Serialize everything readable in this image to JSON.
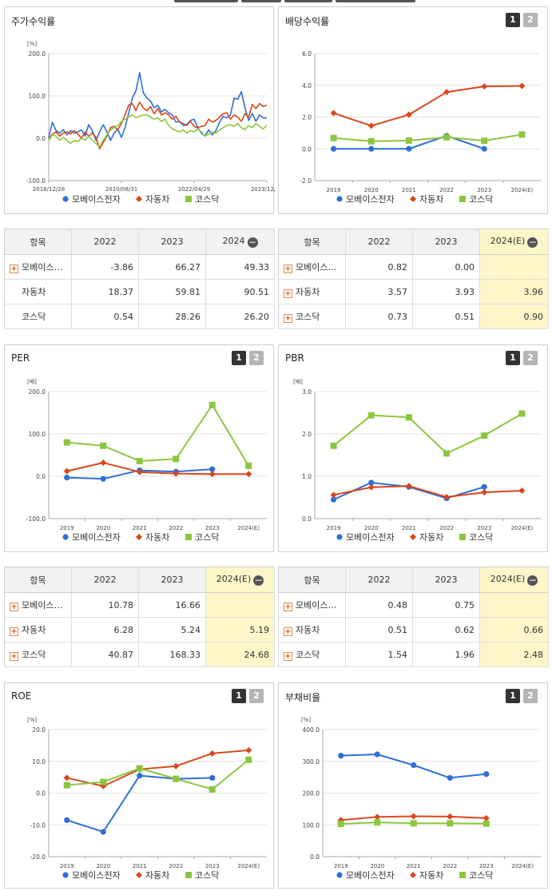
{
  "colors": {
    "mobase": "#2e6fd6",
    "auto": "#d9461b",
    "kosdaq": "#8cc63f"
  },
  "legend": {
    "mobase": "모베이스전자",
    "auto": "자동차",
    "kosdaq": "코스닥"
  },
  "tab_labels": [
    "1",
    "2"
  ],
  "panels": {
    "stock_return": {
      "title": "주가수익률",
      "chart_data": {
        "type": "line",
        "title": "주가수익률",
        "ylabel": "[%]",
        "ylim": [
          -100,
          200
        ],
        "yticks": [
          "200.0",
          "100.0",
          "0.0",
          "-100.0"
        ],
        "xtick_labels": [
          "2018/12/28",
          "2020/08/31",
          "2022/04/29",
          "2023/12/28"
        ],
        "x_range": [
          0,
          60
        ],
        "xtick_positions": [
          0,
          20,
          40,
          60
        ],
        "series": [
          {
            "name": "모베이스전자",
            "values": [
              2,
              38,
              18,
              12,
              20,
              8,
              18,
              12,
              15,
              20,
              5,
              32,
              18,
              -5,
              15,
              32,
              15,
              -5,
              12,
              22,
              2,
              25,
              60,
              95,
              112,
              155,
              108,
              95,
              88,
              72,
              78,
              62,
              68,
              60,
              55,
              38,
              40,
              30,
              32,
              42,
              45,
              25,
              12,
              5,
              20,
              8,
              18,
              38,
              52,
              48,
              55,
              95,
              92,
              110,
              72,
              42,
              58,
              40,
              55,
              48,
              48
            ]
          },
          {
            "name": "자동차",
            "values": [
              -2,
              10,
              15,
              5,
              12,
              15,
              10,
              18,
              10,
              0,
              15,
              5,
              12,
              2,
              -25,
              -10,
              5,
              25,
              28,
              20,
              35,
              55,
              78,
              82,
              65,
              85,
              72,
              65,
              75,
              58,
              70,
              55,
              60,
              55,
              45,
              52,
              38,
              35,
              30,
              40,
              28,
              25,
              28,
              30,
              45,
              38,
              42,
              50,
              58,
              60,
              45,
              55,
              50,
              40,
              58,
              50,
              80,
              70,
              82,
              75,
              78
            ]
          },
          {
            "name": "코스닥",
            "values": [
              -5,
              8,
              5,
              -5,
              2,
              -5,
              -12,
              -5,
              -8,
              0,
              -5,
              5,
              -5,
              -12,
              -20,
              -5,
              8,
              20,
              25,
              30,
              40,
              45,
              50,
              55,
              48,
              52,
              55,
              55,
              50,
              45,
              48,
              40,
              45,
              30,
              22,
              18,
              15,
              20,
              12,
              18,
              15,
              22,
              15,
              5,
              10,
              15,
              12,
              20,
              25,
              30,
              32,
              28,
              35,
              25,
              20,
              30,
              25,
              35,
              28,
              22,
              30
            ]
          }
        ]
      }
    },
    "dividend": {
      "title": "배당수익률",
      "chart_data": {
        "type": "line",
        "title": "배당수익률",
        "ylim": [
          -2,
          6
        ],
        "yticks": [
          "6.0",
          "4.0",
          "2.0",
          "0.0",
          "-2.0"
        ],
        "categories": [
          "2019",
          "2020",
          "2021",
          "2022",
          "2023",
          "2024(E)"
        ],
        "series": [
          {
            "name": "모베이스전자",
            "values": [
              0.0,
              0.0,
              0.0,
              0.82,
              0.0,
              null
            ]
          },
          {
            "name": "자동차",
            "values": [
              2.25,
              1.45,
              2.15,
              3.57,
              3.93,
              3.96
            ]
          },
          {
            "name": "코스닥",
            "values": [
              0.68,
              0.48,
              0.52,
              0.73,
              0.51,
              0.9
            ]
          }
        ]
      }
    },
    "per": {
      "title": "PER",
      "chart_data": {
        "type": "line",
        "title": "PER",
        "ylabel": "[배]",
        "ylim": [
          -100,
          200
        ],
        "yticks": [
          "200.0",
          "100.0",
          "0.0",
          "-100.0"
        ],
        "categories": [
          "2019",
          "2020",
          "2021",
          "2022",
          "2023",
          "2024(E)"
        ],
        "series": [
          {
            "name": "모베이스전자",
            "values": [
              -3,
              -6,
              14,
              10.78,
              16.66,
              null
            ]
          },
          {
            "name": "자동차",
            "values": [
              12,
              32,
              10,
              6.28,
              5.24,
              5.19
            ]
          },
          {
            "name": "코스닥",
            "values": [
              80,
              72,
              36,
              40.87,
              168.33,
              24.68
            ]
          }
        ]
      }
    },
    "pbr": {
      "title": "PBR",
      "chart_data": {
        "type": "line",
        "title": "PBR",
        "ylabel": "[배]",
        "ylim": [
          0,
          3
        ],
        "yticks": [
          "3.0",
          "2.0",
          "1.0",
          "0.0"
        ],
        "categories": [
          "2019",
          "2020",
          "2021",
          "2022",
          "2023",
          "2024(E)"
        ],
        "series": [
          {
            "name": "모베이스전자",
            "values": [
              0.45,
              0.85,
              0.75,
              0.48,
              0.75,
              null
            ]
          },
          {
            "name": "자동차",
            "values": [
              0.56,
              0.74,
              0.77,
              0.51,
              0.62,
              0.66
            ]
          },
          {
            "name": "코스닥",
            "values": [
              1.72,
              2.44,
              2.39,
              1.54,
              1.96,
              2.48
            ]
          }
        ]
      }
    },
    "roe": {
      "title": "ROE",
      "chart_data": {
        "type": "line",
        "title": "ROE",
        "ylabel": "[%]",
        "ylim": [
          -20,
          20
        ],
        "yticks": [
          "20.0",
          "10.0",
          "0.0",
          "-10.0",
          "-20.0"
        ],
        "categories": [
          "2019",
          "2020",
          "2021",
          "2022",
          "2023",
          "2024(E)"
        ],
        "series": [
          {
            "name": "모베이스전자",
            "values": [
              -8.5,
              -12.2,
              5.5,
              4.5,
              4.8,
              null
            ]
          },
          {
            "name": "자동차",
            "values": [
              4.8,
              2.2,
              7.5,
              8.5,
              12.5,
              13.5
            ]
          },
          {
            "name": "코스닥",
            "values": [
              2.5,
              3.5,
              7.8,
              4.5,
              1.2,
              10.5
            ]
          }
        ]
      }
    },
    "debt": {
      "title": "부채비율",
      "chart_data": {
        "type": "line",
        "title": "부채비율",
        "ylabel": "[%]",
        "ylim": [
          0,
          400
        ],
        "yticks": [
          "400.0",
          "300.0",
          "200.0",
          "100.0",
          "0.0"
        ],
        "categories": [
          "2019",
          "2020",
          "2021",
          "2022",
          "2023",
          "2024(E)"
        ],
        "series": [
          {
            "name": "모베이스전자",
            "values": [
              318,
              322,
              288,
              248,
              260,
              null
            ]
          },
          {
            "name": "자동차",
            "values": [
              115,
              125,
              127,
              126,
              121,
              null
            ]
          },
          {
            "name": "코스닥",
            "values": [
              103,
              108,
              105,
              105,
              104,
              null
            ]
          }
        ]
      }
    }
  },
  "tables": {
    "stock_return": {
      "headers": [
        "항목",
        "2022",
        "2023",
        "2024"
      ],
      "rows": [
        {
          "name": "모베이스…",
          "plus": true,
          "values": [
            "-3.86",
            "66.27",
            "49.33"
          ]
        },
        {
          "name": "자동차",
          "plus": false,
          "values": [
            "18.37",
            "59.81",
            "90.51"
          ]
        },
        {
          "name": "코스닥",
          "plus": false,
          "values": [
            "0.54",
            "28.26",
            "26.20"
          ]
        }
      ]
    },
    "dividend": {
      "headers": [
        "항목",
        "2022",
        "2023",
        "2024(E)"
      ],
      "rows": [
        {
          "name": "모베이스…",
          "plus": true,
          "values": [
            "0.82",
            "0.00",
            ""
          ]
        },
        {
          "name": "자동차",
          "plus": true,
          "values": [
            "3.57",
            "3.93",
            "3.96"
          ]
        },
        {
          "name": "코스닥",
          "plus": true,
          "values": [
            "0.73",
            "0.51",
            "0.90"
          ]
        }
      ]
    },
    "per": {
      "headers": [
        "항목",
        "2022",
        "2023",
        "2024(E)"
      ],
      "rows": [
        {
          "name": "모베이스…",
          "plus": true,
          "values": [
            "10.78",
            "16.66",
            ""
          ]
        },
        {
          "name": "자동차",
          "plus": true,
          "values": [
            "6.28",
            "5.24",
            "5.19"
          ]
        },
        {
          "name": "코스닥",
          "plus": true,
          "values": [
            "40.87",
            "168.33",
            "24.68"
          ]
        }
      ]
    },
    "pbr": {
      "headers": [
        "항목",
        "2022",
        "2023",
        "2024(E)"
      ],
      "rows": [
        {
          "name": "모베이스…",
          "plus": true,
          "values": [
            "0.48",
            "0.75",
            ""
          ]
        },
        {
          "name": "자동차",
          "plus": true,
          "values": [
            "0.51",
            "0.62",
            "0.66"
          ]
        },
        {
          "name": "코스닥",
          "plus": true,
          "values": [
            "1.54",
            "1.96",
            "2.48"
          ]
        }
      ]
    }
  }
}
